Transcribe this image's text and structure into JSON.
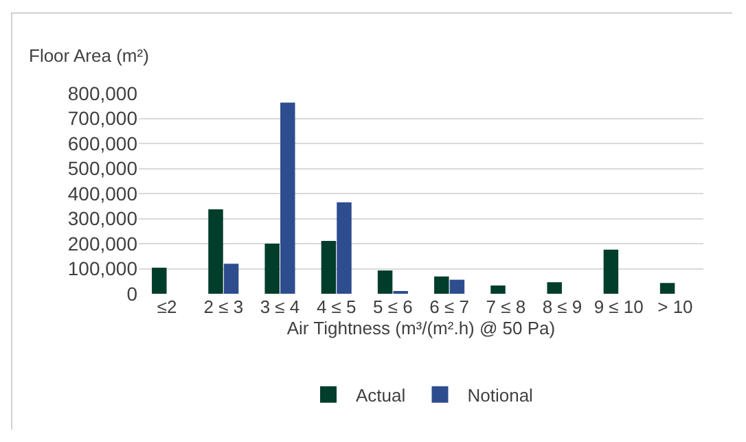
{
  "chart_data": {
    "type": "bar",
    "xlabel": "Air Tightness (m³/(m².h) @ 50 Pa)",
    "ylabel": "Floor Area (m²)",
    "categories": [
      "≤2",
      "2 ≤ 3",
      "3 ≤ 4",
      "4 ≤ 5",
      "5 ≤ 6",
      "6 ≤ 7",
      "7 ≤ 8",
      "8 ≤ 9",
      "9 ≤ 10",
      "> 10"
    ],
    "series": [
      {
        "name": "Actual",
        "color": "#013d2b",
        "values": [
          104000,
          337000,
          200000,
          211000,
          93000,
          69000,
          33000,
          46000,
          176000,
          43000
        ]
      },
      {
        "name": "Notional",
        "color": "#2e4d8f",
        "values": [
          null,
          120000,
          763000,
          365000,
          11000,
          56000,
          null,
          null,
          null,
          null
        ]
      }
    ],
    "ylim": [
      0,
      800000
    ],
    "yticks": [
      {
        "value": 0,
        "label": "0"
      },
      {
        "value": 100000,
        "label": "100,000"
      },
      {
        "value": 200000,
        "label": "200,000"
      },
      {
        "value": 300000,
        "label": "300,000"
      },
      {
        "value": 400000,
        "label": "400,000"
      },
      {
        "value": 500000,
        "label": "500,000"
      },
      {
        "value": 600000,
        "label": "600,000"
      },
      {
        "value": 700000,
        "label": "700,000"
      },
      {
        "value": 800000,
        "label": "800,000"
      }
    ],
    "grid": "y",
    "legend": "bottom"
  }
}
